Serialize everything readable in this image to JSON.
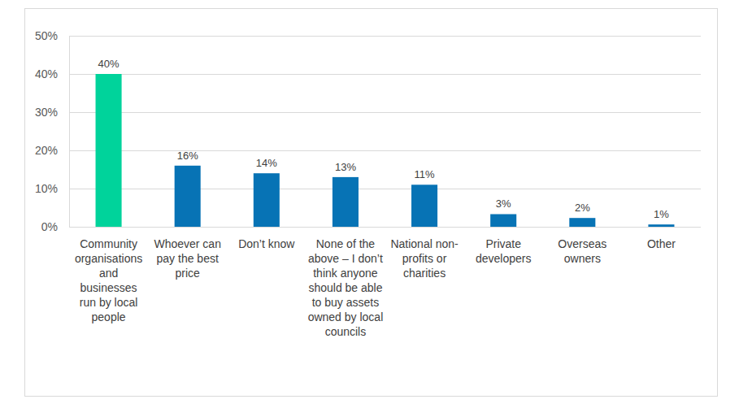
{
  "chart_data": {
    "type": "bar",
    "categories": [
      "Community organisations and businesses run by local people",
      "Whoever can pay the best price",
      "Don’t know",
      "None of the above – I don’t think anyone should be able to buy assets owned by local councils",
      "National non-profits or charities",
      "Private developers",
      "Overseas owners",
      "Other"
    ],
    "values": [
      40,
      16,
      14,
      13,
      11,
      3.3,
      2.3,
      0.6
    ],
    "value_labels": [
      "40%",
      "16%",
      "14%",
      "13%",
      "11%",
      "3%",
      "2%",
      "1%"
    ],
    "colors": [
      "#00d39b",
      "#0773b5",
      "#0773b5",
      "#0773b5",
      "#0773b5",
      "#0773b5",
      "#0773b5",
      "#0773b5"
    ],
    "ylim": [
      0,
      50
    ],
    "yticks": [
      {
        "value": 0,
        "label": "0%"
      },
      {
        "value": 10,
        "label": "10%"
      },
      {
        "value": 20,
        "label": "20%"
      },
      {
        "value": 30,
        "label": "30%"
      },
      {
        "value": 40,
        "label": "40%"
      },
      {
        "value": 50,
        "label": "50%"
      }
    ],
    "grid": true,
    "data_labels": true
  }
}
